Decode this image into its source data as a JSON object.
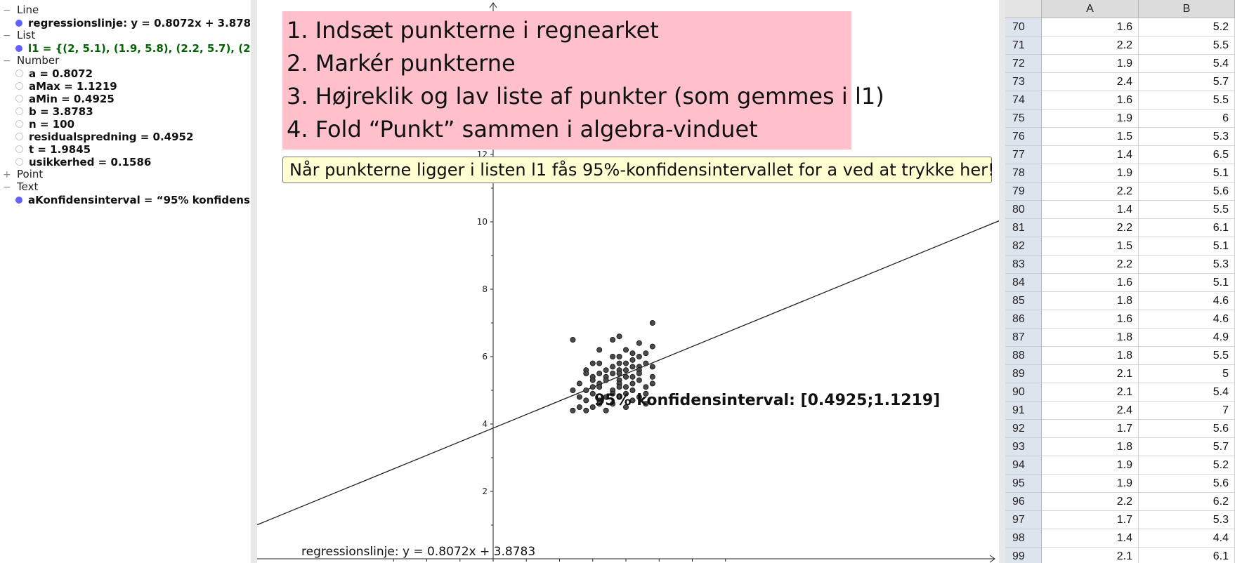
{
  "algebra": {
    "categories": [
      {
        "name": "Line",
        "toggle": "−",
        "items": [
          {
            "text": "regressionslinje: y = 0.8072x + 3.8783",
            "dot": "filled",
            "color": "default"
          }
        ]
      },
      {
        "name": "List",
        "toggle": "−",
        "items": [
          {
            "text": "l1 = {(2, 5.1), (1.9, 5.8), (2.2, 5.7), (2, 5",
            "dot": "filled",
            "color": "green"
          }
        ]
      },
      {
        "name": "Number",
        "toggle": "−",
        "items": [
          {
            "text": "a = 0.8072",
            "dot": "empty",
            "color": "default"
          },
          {
            "text": "aMax = 1.1219",
            "dot": "empty",
            "color": "default"
          },
          {
            "text": "aMin = 0.4925",
            "dot": "empty",
            "color": "default"
          },
          {
            "text": "b = 3.8783",
            "dot": "empty",
            "color": "default"
          },
          {
            "text": "n = 100",
            "dot": "empty",
            "color": "default"
          },
          {
            "text": "residualspredning = 0.4952",
            "dot": "empty",
            "color": "default"
          },
          {
            "text": "t = 1.9845",
            "dot": "empty",
            "color": "default"
          },
          {
            "text": "usikkerhed = 0.1586",
            "dot": "empty",
            "color": "default"
          }
        ]
      },
      {
        "name": "Point",
        "toggle": "+",
        "items": []
      },
      {
        "name": "Text",
        "toggle": "−",
        "items": [
          {
            "text": "aKonfidensinterval = “95% konfidensi",
            "dot": "filled",
            "color": "default"
          }
        ]
      }
    ]
  },
  "graphics": {
    "instructions": [
      "1. Indsæt punkterne i regnearket",
      "2. Markér punkterne",
      "3. Højreklik og lav liste af punkter (som gemmes i l1)",
      "4. Fold “Punkt” sammen i algebra-vinduet"
    ],
    "ci_button_label": "Når punkterne ligger i listen l1 fås 95%-konfidensintervallet for  a  ved at trykke her!",
    "ci_result": "95% konfidensinterval: [0.4925;1.1219]",
    "regression_caption": "regressionslinje: y = 0.8072x + 3.8783",
    "y_ticks": [
      2,
      4,
      6,
      8,
      10,
      12
    ],
    "regression": {
      "slope": 0.8072,
      "intercept": 3.8783
    },
    "points": [
      [
        1.2,
        6.5
      ],
      [
        2.4,
        7.0
      ],
      [
        1.9,
        6.6
      ],
      [
        1.8,
        6.5
      ],
      [
        2.2,
        6.4
      ],
      [
        2.4,
        6.3
      ],
      [
        1.6,
        6.2
      ],
      [
        2.0,
        6.2
      ],
      [
        2.3,
        6.1
      ],
      [
        2.1,
        6.1
      ],
      [
        1.8,
        6.0
      ],
      [
        2.2,
        6.0
      ],
      [
        1.9,
        6.0
      ],
      [
        2.1,
        5.9
      ],
      [
        1.6,
        5.8
      ],
      [
        2.3,
        5.8
      ],
      [
        1.5,
        5.8
      ],
      [
        1.9,
        5.8
      ],
      [
        2.0,
        5.8
      ],
      [
        2.4,
        5.7
      ],
      [
        2.2,
        5.7
      ],
      [
        1.8,
        5.7
      ],
      [
        2.1,
        5.7
      ],
      [
        1.4,
        5.6
      ],
      [
        1.7,
        5.6
      ],
      [
        2.2,
        5.6
      ],
      [
        1.9,
        5.6
      ],
      [
        2.0,
        5.6
      ],
      [
        1.6,
        5.5
      ],
      [
        1.9,
        5.5
      ],
      [
        2.2,
        5.5
      ],
      [
        1.4,
        5.5
      ],
      [
        1.8,
        5.5
      ],
      [
        2.4,
        5.4
      ],
      [
        2.1,
        5.4
      ],
      [
        1.7,
        5.4
      ],
      [
        1.5,
        5.4
      ],
      [
        2.0,
        5.4
      ],
      [
        1.5,
        5.3
      ],
      [
        2.2,
        5.3
      ],
      [
        1.7,
        5.3
      ],
      [
        1.9,
        5.3
      ],
      [
        2.4,
        5.2
      ],
      [
        1.9,
        5.2
      ],
      [
        1.6,
        5.2
      ],
      [
        2.1,
        5.2
      ],
      [
        1.3,
        5.2
      ],
      [
        1.9,
        5.1
      ],
      [
        1.5,
        5.1
      ],
      [
        1.6,
        5.1
      ],
      [
        2.0,
        5.1
      ],
      [
        2.3,
        5.1
      ],
      [
        1.4,
        5.0
      ],
      [
        1.8,
        5.0
      ],
      [
        2.1,
        5.0
      ],
      [
        1.2,
        5.0
      ],
      [
        2.0,
        4.9
      ],
      [
        1.8,
        4.9
      ],
      [
        1.5,
        4.9
      ],
      [
        2.3,
        4.9
      ],
      [
        1.3,
        4.8
      ],
      [
        1.9,
        4.8
      ],
      [
        1.7,
        4.8
      ],
      [
        2.2,
        4.8
      ],
      [
        1.4,
        4.7
      ],
      [
        1.6,
        4.7
      ],
      [
        2.1,
        4.7
      ],
      [
        1.8,
        4.6
      ],
      [
        1.6,
        4.6
      ],
      [
        2.3,
        4.6
      ],
      [
        1.3,
        4.5
      ],
      [
        1.5,
        4.5
      ],
      [
        2.0,
        4.5
      ],
      [
        1.4,
        4.4
      ],
      [
        1.7,
        4.4
      ],
      [
        1.2,
        4.4
      ]
    ]
  },
  "spreadsheet": {
    "columns": [
      "A",
      "B"
    ],
    "rows": [
      {
        "n": "70",
        "a": "1.6",
        "b": "5.2"
      },
      {
        "n": "71",
        "a": "2.2",
        "b": "5.5"
      },
      {
        "n": "72",
        "a": "1.9",
        "b": "5.4"
      },
      {
        "n": "73",
        "a": "2.4",
        "b": "5.7"
      },
      {
        "n": "74",
        "a": "1.6",
        "b": "5.5"
      },
      {
        "n": "75",
        "a": "1.9",
        "b": "6"
      },
      {
        "n": "76",
        "a": "1.5",
        "b": "5.3"
      },
      {
        "n": "77",
        "a": "1.4",
        "b": "6.5"
      },
      {
        "n": "78",
        "a": "1.9",
        "b": "5.1"
      },
      {
        "n": "79",
        "a": "2.2",
        "b": "5.6"
      },
      {
        "n": "80",
        "a": "1.4",
        "b": "5.5"
      },
      {
        "n": "81",
        "a": "2.2",
        "b": "6.1"
      },
      {
        "n": "82",
        "a": "1.5",
        "b": "5.1"
      },
      {
        "n": "83",
        "a": "2.2",
        "b": "5.3"
      },
      {
        "n": "84",
        "a": "1.6",
        "b": "5.1"
      },
      {
        "n": "85",
        "a": "1.8",
        "b": "4.6"
      },
      {
        "n": "86",
        "a": "1.6",
        "b": "4.6"
      },
      {
        "n": "87",
        "a": "1.8",
        "b": "4.9"
      },
      {
        "n": "88",
        "a": "1.8",
        "b": "5.5"
      },
      {
        "n": "89",
        "a": "2.1",
        "b": "5"
      },
      {
        "n": "90",
        "a": "2.1",
        "b": "5.4"
      },
      {
        "n": "91",
        "a": "2.4",
        "b": "7"
      },
      {
        "n": "92",
        "a": "1.7",
        "b": "5.6"
      },
      {
        "n": "93",
        "a": "1.8",
        "b": "5.7"
      },
      {
        "n": "94",
        "a": "1.9",
        "b": "5.2"
      },
      {
        "n": "95",
        "a": "1.9",
        "b": "5.6"
      },
      {
        "n": "96",
        "a": "2.2",
        "b": "6.2"
      },
      {
        "n": "97",
        "a": "1.7",
        "b": "5.3"
      },
      {
        "n": "98",
        "a": "1.4",
        "b": "4.4"
      },
      {
        "n": "99",
        "a": "2.1",
        "b": "6.1"
      }
    ]
  }
}
